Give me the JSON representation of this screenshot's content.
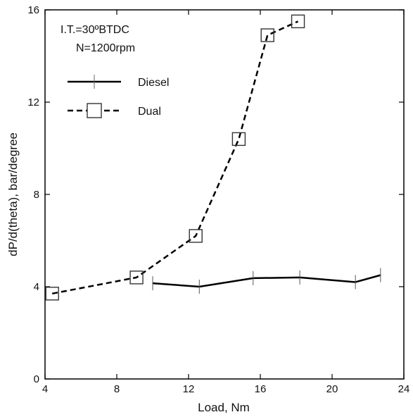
{
  "chart_data": {
    "type": "line",
    "xlabel": "Load, Nm",
    "ylabel": "dP/d(theta), bar/degree",
    "xlim": [
      4,
      24
    ],
    "ylim": [
      0,
      16
    ],
    "xticks": [
      4,
      8,
      12,
      16,
      20,
      24
    ],
    "yticks": [
      0,
      4,
      8,
      12,
      16
    ],
    "grid": false,
    "legend_placement": "top-left",
    "annotations": [
      "I.T.=30ºBTDC",
      "N=1200rpm"
    ],
    "series": [
      {
        "name": "Diesel",
        "line_style": "solid",
        "marker": "plus",
        "color": "#000000",
        "x": [
          10.0,
          12.6,
          15.6,
          18.2,
          21.3,
          22.7
        ],
        "y": [
          4.15,
          4.0,
          4.37,
          4.4,
          4.2,
          4.5
        ]
      },
      {
        "name": "Dual",
        "line_style": "dashed",
        "marker": "square",
        "color": "#000000",
        "x": [
          4.4,
          9.1,
          12.4,
          14.8,
          16.4,
          18.1
        ],
        "y": [
          3.7,
          4.4,
          6.2,
          10.4,
          14.9,
          15.5
        ]
      }
    ]
  }
}
